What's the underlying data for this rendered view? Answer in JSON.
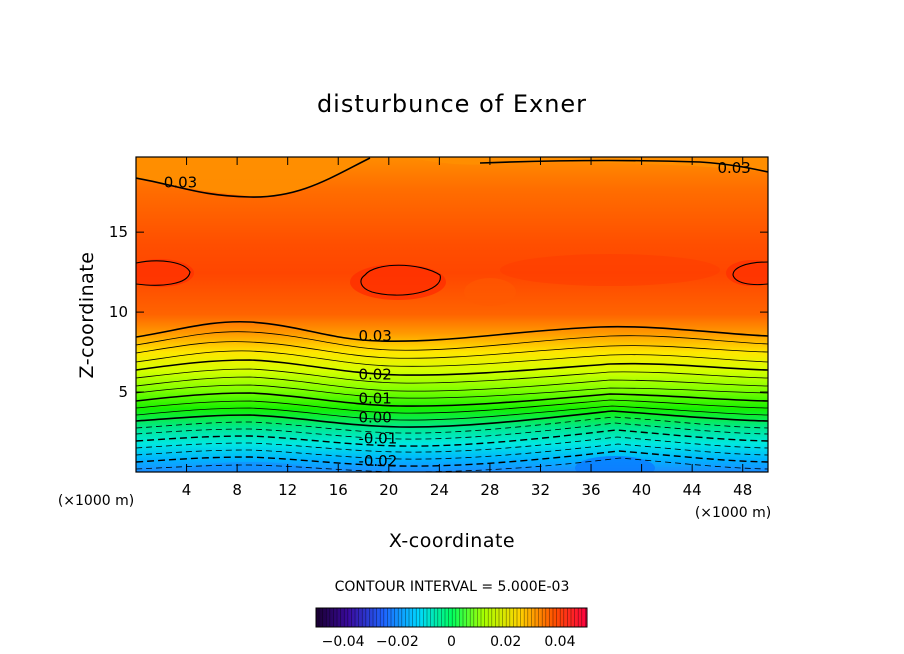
{
  "chart_data": {
    "type": "contour",
    "title": "disturbunce of Exner",
    "xlabel": "X-coordinate",
    "ylabel": "Z-coordinate",
    "x_unit": "(×1000 m)",
    "y_unit": "(×1000 m)",
    "xlim": [
      0,
      50
    ],
    "ylim": [
      0,
      19.7
    ],
    "x_ticks": [
      4,
      8,
      12,
      16,
      20,
      24,
      28,
      32,
      36,
      40,
      44,
      48
    ],
    "y_ticks": [
      5,
      10,
      15
    ],
    "contour_interval_text": "CONTOUR INTERVAL = 5.000E-03",
    "contour_labels": [
      {
        "text": "0.03",
        "x": 2.2,
        "z": 18.1
      },
      {
        "text": "0.03",
        "x": 46.0,
        "z": 19.0
      },
      {
        "text": "0.03",
        "x": 17.6,
        "z": 8.5
      },
      {
        "text": "0.02",
        "x": 17.6,
        "z": 6.1
      },
      {
        "text": "0.01",
        "x": 17.6,
        "z": 4.6
      },
      {
        "text": "0.00",
        "x": 17.6,
        "z": 3.4
      },
      {
        "text": "-0.01",
        "x": 17.6,
        "z": 2.1
      },
      {
        "text": "-0.02",
        "x": 17.6,
        "z": 0.7
      }
    ],
    "colorbar": {
      "range": [
        -0.05,
        0.05
      ],
      "tick_values": [
        -0.04,
        -0.02,
        0,
        0.02,
        0.04
      ],
      "tick_labels": [
        "−0.04",
        "−0.02",
        "0",
        "0.02",
        "0.04"
      ]
    }
  }
}
